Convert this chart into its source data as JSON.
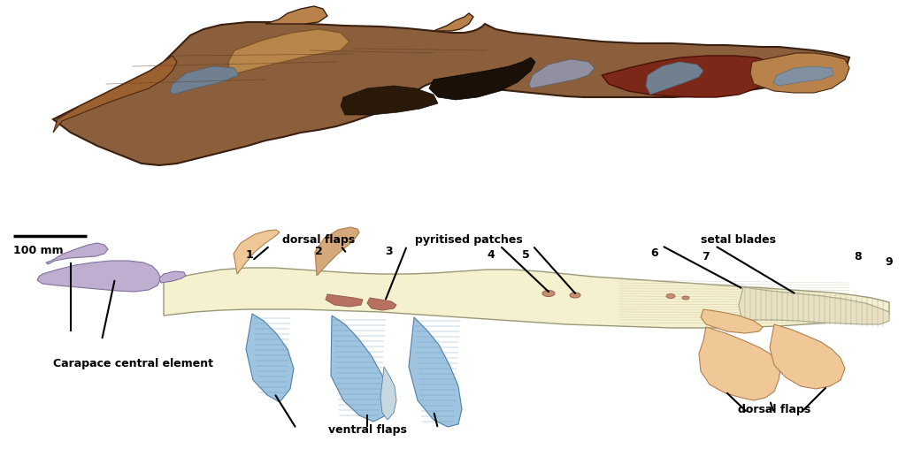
{
  "bg_color": "#ffffff",
  "fig_width": 10.24,
  "fig_height": 5.25,
  "dpi": 100,
  "scale_bar_label": "100 mm",
  "labels": {
    "dorsal_flaps_top": "dorsal flaps",
    "pyritised_patches": "pyritised patches",
    "setal_blades": "setal blades",
    "carapace": "Carapace central element",
    "ventral_flaps": "ventral flaps",
    "dorsal_flaps_bottom": "dorsal flaps"
  },
  "numbers": [
    "1",
    "2",
    "3",
    "4",
    "5",
    "6",
    "7",
    "8",
    "9"
  ],
  "body_color": "#f5f0ce",
  "body_outline": "#999977",
  "flap_dorsal_color": "#f0c898",
  "flap_ventral_color": "#9ec4e0",
  "carapace_color": "#c0aed0",
  "pyrite_color": "#c89070",
  "setal_color": "#e8e0c0",
  "fossil_main": "#8B5E3C",
  "fossil_dark": "#1a1008",
  "fossil_red": "#7B2818",
  "fossil_grey": "#708090",
  "fossil_light": "#B8824A"
}
